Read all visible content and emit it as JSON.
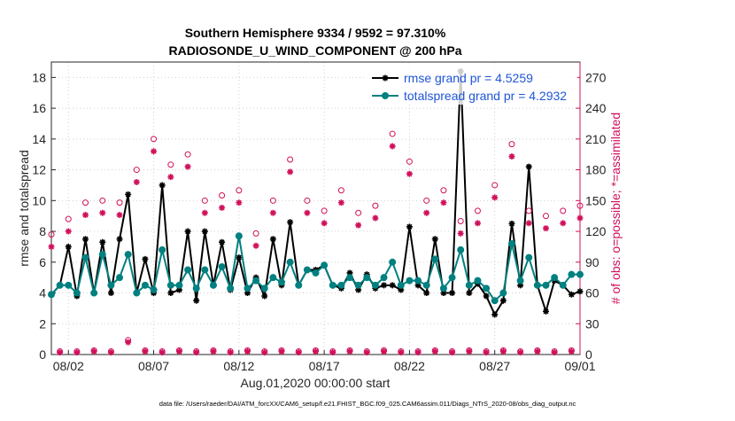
{
  "chart_data": {
    "type": "line",
    "title": "Southern Hemisphere 9334 / 9592 = 97.310%",
    "subtitle": "RADIOSONDE_U_WIND_COMPONENT @ 200 hPa",
    "x_label": "Aug.01,2020 00:00:00 start",
    "y_label": "rmse and totalspread",
    "y2_label": "# of obs: o=possible; *=assimilated",
    "footnote": "data file: /Users/raeder/DAI/ATM_forcXX/CAM6_setup/f.e21.FHIST_BGC.f09_025.CAM6assim.011/Diags_NTrS_2020-08/obs_diag_output.nc",
    "x": [
      0,
      0.5,
      1,
      1.5,
      2,
      2.5,
      3,
      3.5,
      4,
      4.5,
      5,
      5.5,
      6,
      6.5,
      7,
      7.5,
      8,
      8.5,
      9,
      9.5,
      10,
      10.5,
      11,
      11.5,
      12,
      12.5,
      13,
      13.5,
      14,
      14.5,
      15,
      15.5,
      16,
      16.5,
      17,
      17.5,
      18,
      18.5,
      19,
      19.5,
      20,
      20.5,
      21,
      21.5,
      22,
      22.5,
      23,
      23.5,
      24,
      24.5,
      25,
      25.5,
      26,
      26.5,
      27,
      27.5,
      28,
      28.5,
      29,
      29.5,
      30,
      30.5,
      31
    ],
    "series": [
      {
        "name": "rmse grand pr = 4.5259",
        "color": "#000000",
        "marker": "asterisk",
        "line": true,
        "values": [
          3.9,
          4.5,
          7.0,
          3.8,
          7.5,
          4.0,
          7.3,
          4.0,
          7.5,
          10.4,
          4.0,
          6.2,
          4.0,
          11.0,
          4.0,
          4.2,
          8.0,
          3.5,
          8.0,
          4.5,
          7.3,
          4.2,
          6.3,
          4.0,
          5.0,
          3.8,
          7.5,
          4.5,
          8.6,
          4.5,
          5.5,
          5.5,
          5.8,
          4.5,
          4.3,
          5.3,
          4.2,
          5.2,
          4.3,
          4.5,
          4.5,
          4.2,
          8.3,
          4.5,
          4.0,
          7.5,
          4.0,
          4.0,
          18.4,
          4.0,
          4.6,
          3.8,
          2.6,
          3.5,
          8.5,
          4.5,
          12.2,
          4.5,
          2.8,
          4.8,
          4.5,
          3.9,
          4.1
        ]
      },
      {
        "name": "totalspread grand pr = 4.2932",
        "color": "#008080",
        "marker": "circle",
        "line": true,
        "values": [
          3.9,
          4.5,
          4.5,
          4.0,
          6.3,
          4.0,
          6.5,
          4.5,
          5.0,
          6.5,
          4.0,
          4.5,
          4.2,
          6.8,
          4.5,
          4.5,
          5.5,
          4.3,
          5.5,
          4.5,
          5.7,
          4.3,
          7.7,
          4.3,
          4.8,
          4.3,
          5.0,
          4.7,
          6.0,
          4.5,
          5.5,
          5.3,
          5.8,
          4.5,
          4.5,
          5.0,
          4.5,
          5.0,
          4.5,
          5.0,
          6.0,
          4.5,
          4.8,
          4.8,
          4.5,
          6.2,
          4.3,
          5.0,
          6.8,
          4.5,
          4.8,
          4.3,
          3.5,
          4.0,
          7.2,
          4.8,
          6.3,
          4.5,
          4.5,
          5.0,
          4.5,
          5.2,
          5.2
        ]
      },
      {
        "color": "#d0105a",
        "marker": "open-circle",
        "line": false,
        "axis": "y2",
        "values": [
          117,
          3,
          132,
          3,
          148,
          4,
          150,
          3,
          148,
          14,
          180,
          4,
          210,
          3,
          185,
          4,
          195,
          3,
          150,
          4,
          155,
          3,
          160,
          4,
          118,
          3,
          150,
          4,
          190,
          3,
          150,
          4,
          140,
          3,
          160,
          4,
          138,
          3,
          145,
          4,
          215,
          3,
          188,
          3,
          150,
          4,
          160,
          3,
          130,
          4,
          140,
          3,
          165,
          4,
          205,
          3,
          140,
          4,
          135,
          3,
          140,
          4,
          145
        ]
      },
      {
        "color": "#d0105a",
        "marker": "asterisk",
        "line": false,
        "axis": "y2",
        "values": [
          105,
          2,
          120,
          2,
          136,
          3,
          138,
          2,
          136,
          12,
          168,
          3,
          198,
          2,
          173,
          3,
          183,
          2,
          138,
          3,
          143,
          2,
          148,
          3,
          106,
          2,
          138,
          3,
          178,
          2,
          138,
          3,
          128,
          2,
          148,
          3,
          126,
          2,
          133,
          3,
          203,
          2,
          176,
          2,
          138,
          3,
          148,
          2,
          118,
          3,
          128,
          2,
          153,
          3,
          193,
          2,
          128,
          3,
          123,
          2,
          128,
          3,
          133
        ]
      }
    ],
    "xlim": [
      0,
      31
    ],
    "xticks": [
      {
        "value": 1,
        "label": "08/02"
      },
      {
        "value": 6,
        "label": "08/07"
      },
      {
        "value": 11,
        "label": "08/12"
      },
      {
        "value": 16,
        "label": "08/17"
      },
      {
        "value": 21,
        "label": "08/22"
      },
      {
        "value": 26,
        "label": "08/27"
      },
      {
        "value": 31,
        "label": "09/01"
      }
    ],
    "ylim": [
      0,
      19
    ],
    "yticks": [
      0,
      2,
      4,
      6,
      8,
      10,
      12,
      14,
      16,
      18
    ],
    "y2lim": [
      0,
      285
    ],
    "y2ticks": [
      0,
      30,
      60,
      90,
      120,
      150,
      180,
      210,
      240,
      270
    ],
    "y2_color": "#d0105a",
    "legend_color": "#1f55d8",
    "grid": true,
    "legend": "upper right"
  }
}
